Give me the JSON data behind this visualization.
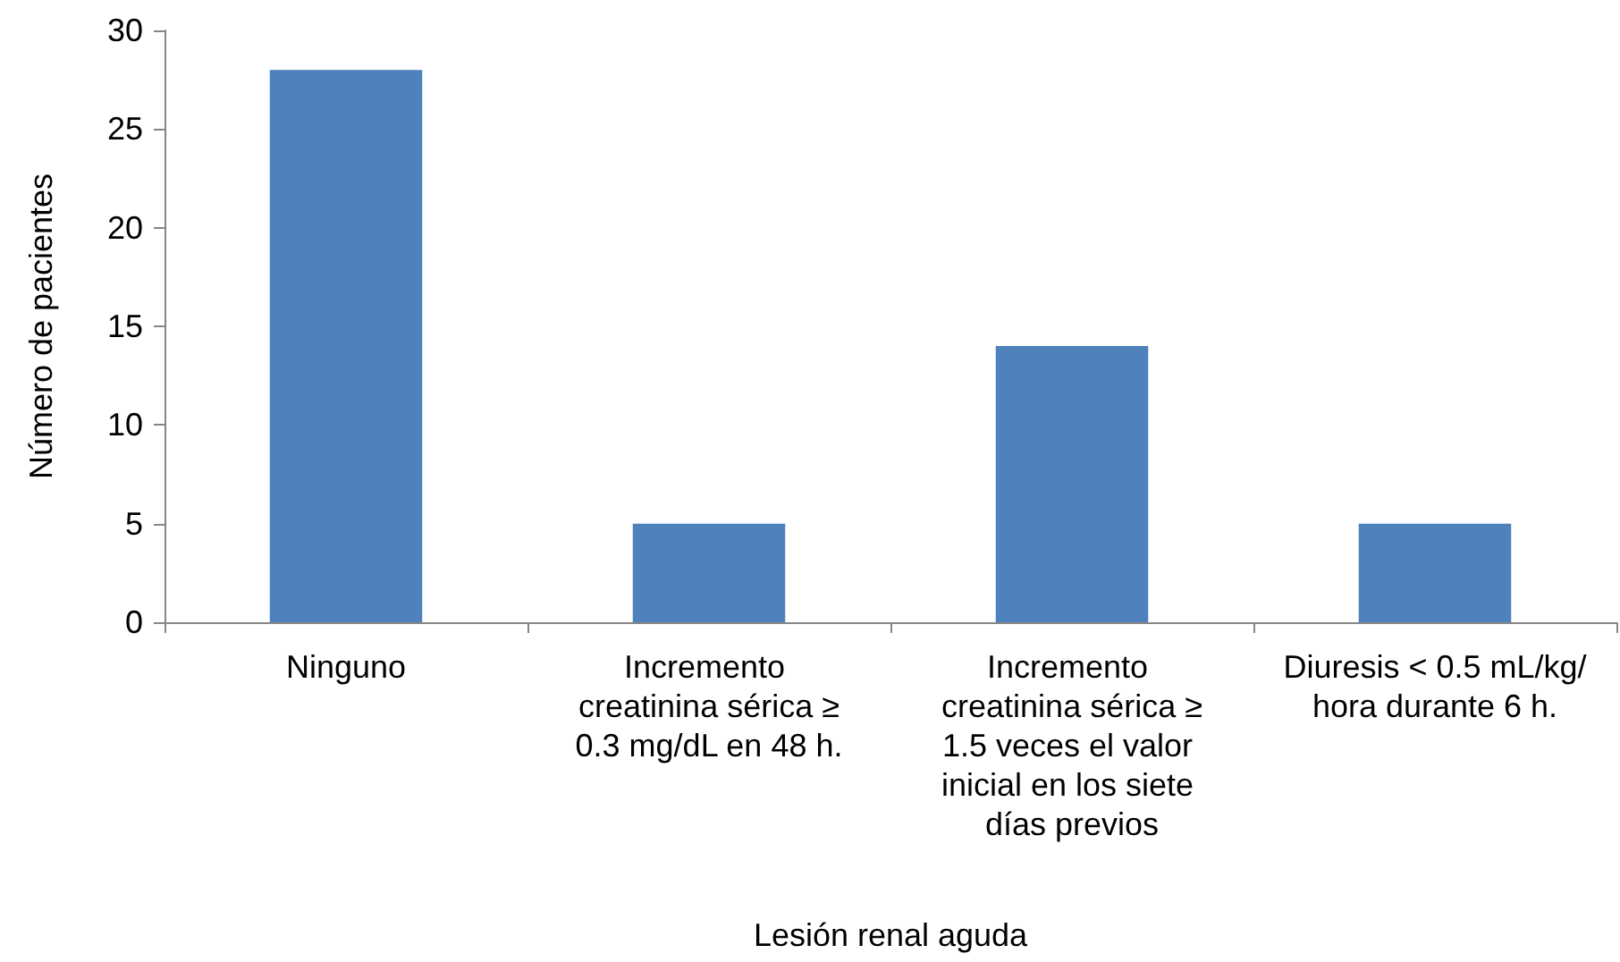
{
  "chart_data": {
    "type": "bar",
    "xlabel": "Lesión renal aguda",
    "ylabel": "Número de pacientes",
    "categories": [
      "Ninguno",
      "Incremento creatinina sérica ≥0.3 mg/dL en 48 h.",
      "Incremento creatinina sérica ≥1.5 veces el valor inicial en los siete días previos",
      "Diuresis < 0.5 mL/kg/hora durante 6 h."
    ],
    "values": [
      28,
      5,
      14,
      5
    ],
    "color": "#4f81bd",
    "ylim": [
      0,
      30
    ],
    "yticks": [
      0,
      5,
      10,
      15,
      20,
      25,
      30
    ],
    "grid": false
  }
}
